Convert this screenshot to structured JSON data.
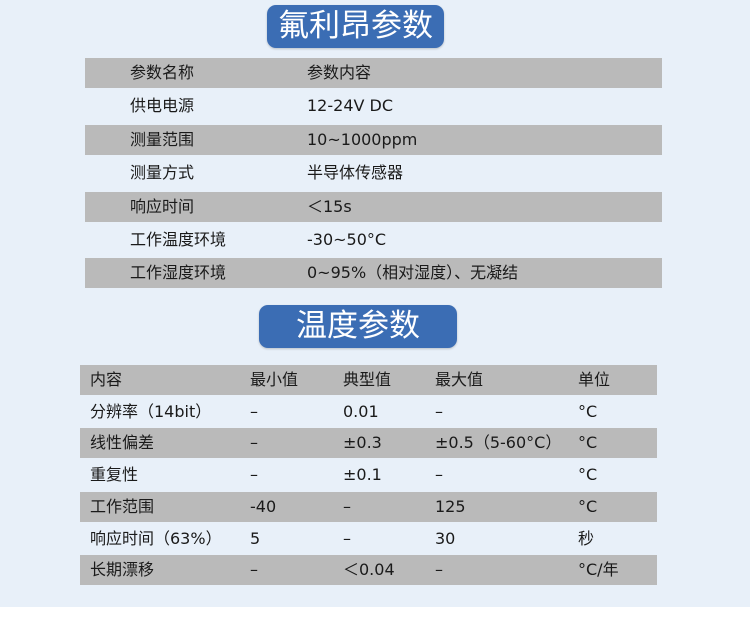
{
  "freon": {
    "title": "氟利昂参数",
    "rows": [
      [
        "参数名称",
        "参数内容"
      ],
      [
        "供电电源",
        "12-24V DC"
      ],
      [
        "测量范围",
        "10~1000ppm"
      ],
      [
        "测量方式",
        "半导体传感器"
      ],
      [
        "响应时间",
        "＜15s"
      ],
      [
        "工作温度环境",
        "-30~50°C"
      ],
      [
        "工作湿度环境",
        "0~95%（相对湿度）、无凝结"
      ]
    ]
  },
  "temperature": {
    "title": "温度参数",
    "rows": [
      [
        "内容",
        "最小值",
        "典型值",
        "最大值",
        "单位"
      ],
      [
        "分辨率（14bit）",
        "–",
        "0.01",
        "–",
        "°C"
      ],
      [
        "线性偏差",
        "–",
        "±0.3",
        "±0.5（5-60°C）",
        "°C"
      ],
      [
        "重复性",
        "–",
        "±0.1",
        "–",
        "°C"
      ],
      [
        "工作范围",
        "-40",
        "–",
        "125",
        "°C"
      ],
      [
        "响应时间（63%）",
        "5",
        "–",
        "30",
        "秒"
      ],
      [
        "长期漂移",
        "–",
        "＜0.04",
        "–",
        "°C/年"
      ]
    ]
  }
}
